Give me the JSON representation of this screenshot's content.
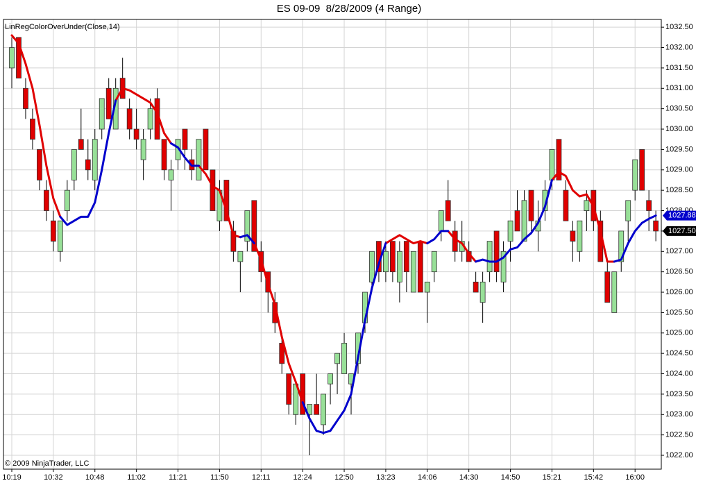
{
  "chart_data": {
    "type": "candlestick",
    "title": "ES 09-09  8/28/2009 (4 Range)",
    "indicator_label": "LinRegColorOverUnder(Close,14)",
    "copyright": "© 2009 NinjaTrader, LLC",
    "categories": [
      "10:19",
      null,
      null,
      null,
      null,
      null,
      "10:32",
      null,
      null,
      null,
      null,
      null,
      "10:48",
      null,
      null,
      null,
      null,
      null,
      "11:02",
      null,
      null,
      null,
      null,
      null,
      "11:21",
      null,
      null,
      null,
      null,
      null,
      "11:50",
      null,
      null,
      null,
      null,
      null,
      "12:11",
      null,
      null,
      null,
      null,
      null,
      "12:24",
      null,
      null,
      null,
      null,
      null,
      "12:50",
      null,
      null,
      null,
      null,
      null,
      "13:23",
      null,
      null,
      null,
      null,
      null,
      "14:06",
      null,
      null,
      null,
      null,
      null,
      "14:30",
      null,
      null,
      null,
      null,
      null,
      "14:50",
      null,
      null,
      null,
      null,
      null,
      "15:21",
      null,
      null,
      null,
      null,
      null,
      "15:42",
      null,
      null,
      null,
      null,
      null,
      "16:00",
      null,
      null,
      null
    ],
    "open": [
      1031.5,
      1032.25,
      1031,
      1030.25,
      1029.5,
      1028.5,
      1027.75,
      1027,
      1028,
      1028.75,
      1029.75,
      1029.25,
      1028.75,
      1030,
      1031,
      1030,
      1031.25,
      1030.5,
      1030,
      1029.25,
      1030,
      1030.75,
      1029.75,
      1028.75,
      1029.25,
      1030,
      1029.25,
      1028.75,
      1030,
      1029,
      1027.75,
      1028.75,
      1027.5,
      1026.75,
      1027.25,
      1028.25,
      1027,
      1026.5,
      1025.75,
      1024.75,
      1024,
      1023,
      1024,
      1023,
      1023.25,
      1022.75,
      1023.75,
      1024.25,
      1024,
      1023.75,
      1024.25,
      1025.25,
      1026.25,
      1027.25,
      1026.5,
      1027.25,
      1026.25,
      1027.25,
      1026,
      1027.25,
      1026,
      1026.5,
      1027.5,
      1028.25,
      1027.5,
      1027,
      1027,
      1026.25,
      1025.75,
      1026.5,
      1027.5,
      1026.25,
      1027.25,
      1028,
      1027.25,
      1028.5,
      1027.5,
      1028,
      1028.75,
      1029.75,
      1028.5,
      1027.5,
      1027,
      1028,
      1028.5,
      1027.75,
      1026.5,
      1025.5,
      1026.75,
      1027.75,
      1028.5,
      1029.5,
      1028.25,
      1027.75
    ],
    "high": [
      1032.25,
      1032.25,
      1031.25,
      1030.5,
      1029.5,
      1028.75,
      1028,
      1027.75,
      1028.75,
      1029.5,
      1030.5,
      1029.75,
      1030,
      1030.75,
      1031.25,
      1031.25,
      1031.75,
      1030.75,
      1030.5,
      1030,
      1030.75,
      1031,
      1029.75,
      1029.25,
      1029.75,
      1030,
      1029.5,
      1029.75,
      1030,
      1029,
      1028.75,
      1028.75,
      1027.75,
      1027,
      1028,
      1028.25,
      1027.25,
      1026.5,
      1026,
      1025,
      1024,
      1023.75,
      1024,
      1023.25,
      1024,
      1023.5,
      1024,
      1024.5,
      1025,
      1024,
      1025,
      1026,
      1027,
      1027.25,
      1027.25,
      1027.25,
      1027.25,
      1027.25,
      1027,
      1027.25,
      1026.25,
      1027,
      1028,
      1028.75,
      1027.75,
      1027.75,
      1027.25,
      1026.5,
      1026.5,
      1027.25,
      1027.5,
      1027.25,
      1027.75,
      1028.5,
      1028.5,
      1028.5,
      1028.25,
      1028.75,
      1029.5,
      1029.75,
      1028.75,
      1027.75,
      1027.75,
      1028.5,
      1028.5,
      1028,
      1026.75,
      1026.5,
      1027.5,
      1028.25,
      1029.25,
      1029.5,
      1028.5,
      1028
    ],
    "low": [
      1031,
      1031.25,
      1030.25,
      1029.5,
      1028.5,
      1027.75,
      1027,
      1026.75,
      1027.75,
      1028.5,
      1029.5,
      1028.75,
      1028.5,
      1029.75,
      1030.25,
      1030,
      1030.75,
      1029.75,
      1029.5,
      1028.75,
      1029.75,
      1029.75,
      1028.75,
      1028,
      1029,
      1029,
      1028.75,
      1028.75,
      1029,
      1028,
      1027.5,
      1027.75,
      1026.75,
      1026,
      1027,
      1027,
      1026.25,
      1025.5,
      1025,
      1024,
      1023,
      1022.75,
      1023,
      1022,
      1023,
      1022.5,
      1023.25,
      1023.5,
      1024,
      1023,
      1024,
      1025,
      1026,
      1026.25,
      1026.25,
      1026.25,
      1025.75,
      1026,
      1026,
      1026,
      1025.25,
      1026.25,
      1027.25,
      1027.75,
      1026.75,
      1026.75,
      1026.75,
      1026,
      1025.25,
      1026.25,
      1026.25,
      1026,
      1026.75,
      1027.5,
      1027.25,
      1027.5,
      1027,
      1027.75,
      1028.5,
      1028.75,
      1027.75,
      1026.75,
      1026.75,
      1027.5,
      1027.5,
      1026.75,
      1025.75,
      1025.5,
      1026.5,
      1027.25,
      1028.25,
      1028.5,
      1027.5,
      1027.25
    ],
    "close": [
      1032,
      1031.25,
      1030.5,
      1029.75,
      1028.75,
      1028,
      1027.25,
      1027.75,
      1028.5,
      1029.5,
      1029.5,
      1029,
      1029.75,
      1030.75,
      1030.25,
      1031,
      1030.75,
      1030,
      1029.75,
      1029.75,
      1030.5,
      1029.75,
      1029,
      1029,
      1029.75,
      1029.5,
      1029,
      1029.75,
      1029,
      1028,
      1028.5,
      1027.75,
      1027,
      1027,
      1028,
      1027,
      1026.5,
      1026,
      1025.25,
      1024.25,
      1023.25,
      1023.75,
      1023,
      1023.25,
      1023,
      1023.5,
      1024,
      1024.5,
      1024.75,
      1024,
      1025,
      1026,
      1027,
      1026.5,
      1027,
      1026.5,
      1027,
      1026.5,
      1027,
      1026,
      1026.25,
      1027,
      1028,
      1027.75,
      1027,
      1027.25,
      1026.75,
      1026,
      1026.25,
      1027.25,
      1026.5,
      1027,
      1027.75,
      1027.5,
      1028.25,
      1027.75,
      1027.75,
      1028.5,
      1029.5,
      1028.75,
      1027.75,
      1027.25,
      1027.75,
      1028.25,
      1027.75,
      1026.75,
      1025.75,
      1026.5,
      1027.5,
      1028.25,
      1029.25,
      1028.5,
      1028,
      1027.5
    ],
    "up_color": "#98e098",
    "down_color": "#e00000",
    "indicator": [
      {
        "color": "#e00000",
        "values": [
          1032.3,
          1032.1,
          1031.6,
          1031.0,
          1030.1,
          1029.1,
          1028.3,
          1027.85,
          null,
          null,
          null,
          null,
          null,
          null,
          null,
          1030.7,
          1031.0,
          1030.95,
          1030.85,
          1030.75,
          1030.65,
          1030.4,
          1029.9,
          1029.65,
          null,
          null,
          null,
          1029.1,
          1028.9,
          1028.6,
          1028.5,
          1028.0,
          1027.4,
          1027.35,
          null,
          1027.2,
          1026.8,
          1026.2,
          1025.7,
          1024.9,
          1024.25,
          1023.8,
          1023.3,
          null,
          null,
          null,
          null,
          null,
          null,
          null,
          null,
          null,
          null,
          null,
          1027.2,
          1027.3,
          1027.4,
          1027.3,
          1027.2,
          1027.25,
          1027.2,
          null,
          null,
          1027.5,
          1027.3,
          1027.2,
          1026.95,
          1026.75,
          null,
          null,
          null,
          null,
          null,
          null,
          null,
          null,
          null,
          null,
          1028.75,
          1028.95,
          1028.85,
          1028.5,
          1028.35,
          1028.4,
          1028.1,
          1027.5,
          1026.75,
          1026.75,
          null,
          null,
          null,
          null,
          null,
          null
        ]
      },
      {
        "color": "#0000cc",
        "values": [
          null,
          null,
          null,
          null,
          null,
          null,
          null,
          1027.85,
          1027.65,
          1027.75,
          1027.85,
          1027.85,
          1028.2,
          1029.0,
          1029.9,
          1030.7,
          null,
          null,
          null,
          null,
          null,
          null,
          null,
          1029.65,
          1029.55,
          1029.3,
          1029.1,
          1029.1,
          null,
          null,
          null,
          null,
          null,
          1027.35,
          1027.4,
          1027.2,
          null,
          null,
          null,
          null,
          null,
          null,
          1023.3,
          1022.9,
          1022.6,
          1022.55,
          1022.6,
          1022.85,
          1023.1,
          1023.5,
          1024.4,
          1025.3,
          1026.1,
          1026.7,
          1027.2,
          null,
          null,
          null,
          null,
          null,
          1027.2,
          1027.3,
          1027.5,
          1027.5,
          null,
          null,
          null,
          1026.75,
          1026.8,
          1026.75,
          1026.75,
          1026.85,
          1027.05,
          1027.1,
          1027.3,
          1027.45,
          1027.7,
          1028.1,
          1028.75,
          null,
          null,
          null,
          null,
          null,
          null,
          null,
          null,
          1026.75,
          1026.8,
          1027.2,
          1027.5,
          1027.7,
          1027.8,
          1027.88
        ]
      }
    ],
    "price_markers": [
      {
        "value": 1027.88,
        "label": "1027.88",
        "color": "#0000cc"
      },
      {
        "value": 1027.5,
        "label": "1027.50",
        "color": "#000000"
      }
    ],
    "ylim": [
      1021.66,
      1032.69
    ],
    "yticks": [
      {
        "value": 1022,
        "label": "1022.00"
      },
      {
        "value": 1022.5,
        "label": "1022.50"
      },
      {
        "value": 1023,
        "label": "1023.00"
      },
      {
        "value": 1023.5,
        "label": "1023.50"
      },
      {
        "value": 1024,
        "label": "1024.00"
      },
      {
        "value": 1024.5,
        "label": "1024.50"
      },
      {
        "value": 1025,
        "label": "1025.00"
      },
      {
        "value": 1025.5,
        "label": "1025.50"
      },
      {
        "value": 1026,
        "label": "1026.00"
      },
      {
        "value": 1026.5,
        "label": "1026.50"
      },
      {
        "value": 1027,
        "label": "1027.00"
      },
      {
        "value": 1027.5,
        "label": "1027.50"
      },
      {
        "value": 1028,
        "label": "1028.00"
      },
      {
        "value": 1028.5,
        "label": "1028.50"
      },
      {
        "value": 1029,
        "label": "1029.00"
      },
      {
        "value": 1029.5,
        "label": "1029.50"
      },
      {
        "value": 1030,
        "label": "1030.00"
      },
      {
        "value": 1030.5,
        "label": "1030.50"
      },
      {
        "value": 1031,
        "label": "1031.00"
      },
      {
        "value": 1031.5,
        "label": "1031.50"
      },
      {
        "value": 1032,
        "label": "1032.00"
      },
      {
        "value": 1032.5,
        "label": "1032.50"
      }
    ],
    "grid": true
  }
}
